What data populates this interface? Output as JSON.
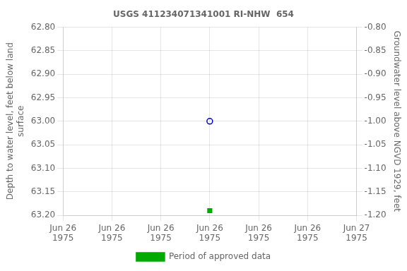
{
  "chart_data": {
    "type": "scatter",
    "title": "USGS 411234071341001 RI-NHW  654",
    "x": [
      3.0
    ],
    "series": [
      {
        "color": "#0000cc",
        "marker": "open_circle",
        "values": [
          63.0
        ]
      },
      {
        "name": "Period of approved data",
        "color": "#00aa00",
        "marker": "square",
        "values": [
          63.19
        ]
      }
    ],
    "xlim": [
      0,
      6
    ],
    "xticks": [
      {
        "value": 0,
        "label": "Jun 26\n1975"
      },
      {
        "value": 1,
        "label": "Jun 26\n1975"
      },
      {
        "value": 2,
        "label": "Jun 26\n1975"
      },
      {
        "value": 3,
        "label": "Jun 26\n1975"
      },
      {
        "value": 4,
        "label": "Jun 26\n1975"
      },
      {
        "value": 5,
        "label": "Jun 26\n1975"
      },
      {
        "value": 6,
        "label": "Jun 27\n1975"
      }
    ],
    "ylim": [
      63.2,
      62.8
    ],
    "yticks": [
      {
        "value": 62.8,
        "label": "62.80"
      },
      {
        "value": 62.85,
        "label": "62.85"
      },
      {
        "value": 62.9,
        "label": "62.90"
      },
      {
        "value": 62.95,
        "label": "62.95"
      },
      {
        "value": 63.0,
        "label": "63.00"
      },
      {
        "value": 63.05,
        "label": "63.05"
      },
      {
        "value": 63.1,
        "label": "63.10"
      },
      {
        "value": 63.15,
        "label": "63.15"
      },
      {
        "value": 63.2,
        "label": "63.20"
      }
    ],
    "y2lim": [
      -1.2,
      -0.8
    ],
    "y2ticks": [
      {
        "value": -0.8,
        "label": "-0.80"
      },
      {
        "value": -0.85,
        "label": "-0.85"
      },
      {
        "value": -0.9,
        "label": "-0.90"
      },
      {
        "value": -0.95,
        "label": "-0.95"
      },
      {
        "value": -1.0,
        "label": "-1.00"
      },
      {
        "value": -1.05,
        "label": "-1.05"
      },
      {
        "value": -1.1,
        "label": "-1.10"
      },
      {
        "value": -1.15,
        "label": "-1.15"
      },
      {
        "value": -1.2,
        "label": "-1.20"
      }
    ],
    "ylabel": "Depth to water level, feet below land\nsurface",
    "y2label": "Groundwater level above NGVD 1929, feet",
    "grid": true,
    "legend": "bottom"
  }
}
